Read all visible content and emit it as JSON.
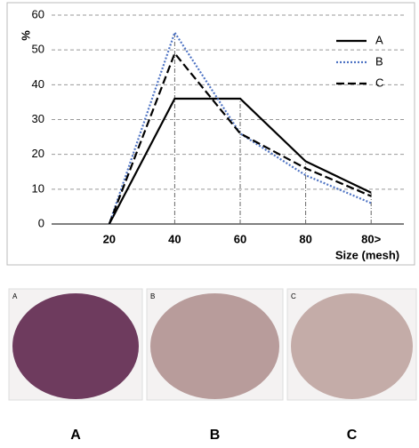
{
  "chart_data": {
    "type": "line",
    "y_label": "%",
    "x_label": "Size (mesh)",
    "categories": [
      "20",
      "40",
      "60",
      "80",
      "80>"
    ],
    "series": [
      {
        "name": "A",
        "color": "#000000",
        "dash": "solid",
        "values": [
          0,
          36,
          36,
          18,
          9
        ]
      },
      {
        "name": "B",
        "color": "#4f74c4",
        "dash": "dotted",
        "values": [
          0,
          55,
          26,
          14,
          6
        ]
      },
      {
        "name": "C",
        "color": "#000000",
        "dash": "dashed",
        "values": [
          0,
          49,
          26,
          16,
          8
        ]
      }
    ],
    "ylim": [
      0,
      60
    ],
    "yticks": [
      0,
      10,
      20,
      30,
      40,
      50,
      60
    ],
    "grid": true,
    "legend": "upper-right"
  },
  "photos": [
    {
      "tag": "A",
      "caption": "A",
      "color": "#6e3b5e"
    },
    {
      "tag": "B",
      "caption": "B",
      "color": "#b89c9b"
    },
    {
      "tag": "C",
      "caption": "C",
      "color": "#c4aca8"
    }
  ]
}
